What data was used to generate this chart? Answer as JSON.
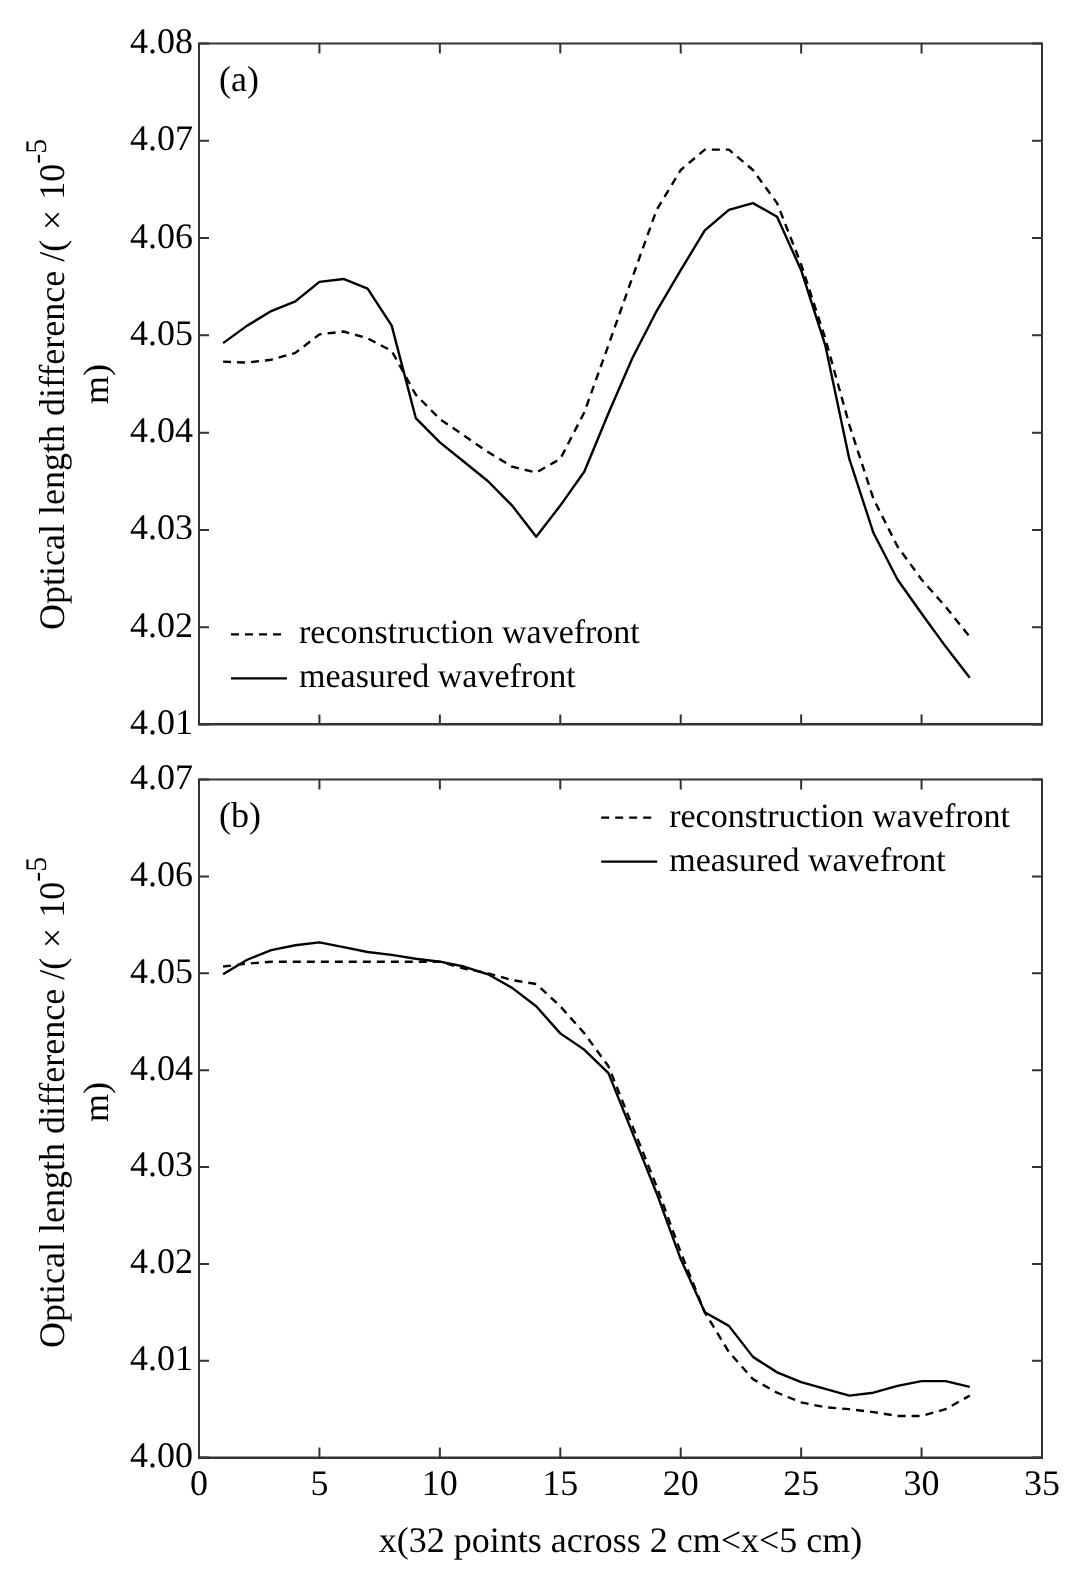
{
  "chart_data": [
    {
      "type": "line",
      "ylabel": "Optical length difference /(×10$^{-5}$ m)",
      "annotations": [
        "(a)"
      ],
      "legend": "bottom left",
      "tick_labels": "y",
      "x": [
        1,
        2,
        3,
        4,
        5,
        6,
        7,
        8,
        9,
        10,
        11,
        12,
        13,
        14,
        15,
        16,
        17,
        18,
        19,
        20,
        21,
        22,
        23,
        24,
        25,
        26,
        27,
        28,
        29,
        30,
        31,
        32
      ],
      "xlim": [
        0,
        35
      ],
      "xticks": [
        0,
        5,
        10,
        15,
        20,
        25,
        30,
        35
      ],
      "ylim": [
        4.01,
        4.08
      ],
      "yticks": [
        4.01,
        4.02,
        4.03,
        4.04,
        4.05,
        4.06,
        4.07,
        4.08
      ],
      "series": [
        {
          "name": "reconstruction wavefront",
          "color": "#000000",
          "line_style": "dashed",
          "values": [
            4.0473,
            4.0472,
            4.0475,
            4.0482,
            4.0501,
            4.0504,
            4.0497,
            4.0484,
            4.0439,
            4.0414,
            4.0397,
            4.038,
            4.0365,
            4.0359,
            4.0373,
            4.0421,
            4.049,
            4.056,
            4.0629,
            4.067,
            4.0691,
            4.0691,
            4.067,
            4.0636,
            4.0573,
            4.0497,
            4.0408,
            4.0332,
            4.0283,
            4.0249,
            4.0221,
            4.019
          ]
        },
        {
          "name": "measured wavefront",
          "color": "#000000",
          "line_style": "solid",
          "values": [
            4.0492,
            4.051,
            4.0525,
            4.0535,
            4.0555,
            4.0558,
            4.0548,
            4.051,
            4.0415,
            4.039,
            4.037,
            4.035,
            4.0325,
            4.0293,
            4.0325,
            4.036,
            4.042,
            4.0477,
            4.0525,
            4.0567,
            4.0608,
            4.0629,
            4.0636,
            4.0622,
            4.0567,
            4.049,
            4.0373,
            4.0297,
            4.0249,
            4.0214,
            4.018,
            4.0148
          ]
        }
      ]
    },
    {
      "type": "line",
      "ylabel": "Optical length difference /(×10$^{-5}$ m)",
      "xlabel": "x(32 points across 2 cm<x<5 cm)",
      "annotations": [
        "(b)"
      ],
      "legend": "top right",
      "x": [
        1,
        2,
        3,
        4,
        5,
        6,
        7,
        8,
        9,
        10,
        11,
        12,
        13,
        14,
        15,
        16,
        17,
        18,
        19,
        20,
        21,
        22,
        23,
        24,
        25,
        26,
        27,
        28,
        29,
        30,
        31,
        32
      ],
      "xlim": [
        0,
        35
      ],
      "xticks": [
        0,
        5,
        10,
        15,
        20,
        25,
        30,
        35
      ],
      "ylim": [
        4.0,
        4.07
      ],
      "yticks": [
        {
          "value": 4.0,
          "label": "4.00"
        },
        4.01,
        4.02,
        4.03,
        4.04,
        4.05,
        4.06,
        4.07
      ],
      "series": [
        {
          "name": "reconstruction wavefront",
          "color": "#000000",
          "line_style": "dashed",
          "values": [
            4.0507,
            4.051,
            4.0512,
            4.0512,
            4.0512,
            4.0512,
            4.0512,
            4.0512,
            4.0512,
            4.0512,
            4.0505,
            4.05,
            4.0493,
            4.0489,
            4.0466,
            4.0438,
            4.0404,
            4.0342,
            4.028,
            4.0212,
            4.015,
            4.0109,
            4.0081,
            4.0067,
            4.0057,
            4.0052,
            4.005,
            4.0047,
            4.0043,
            4.0043,
            4.005,
            4.0064
          ]
        },
        {
          "name": "measured wavefront",
          "color": "#000000",
          "line_style": "solid",
          "values": [
            4.0499,
            4.0514,
            4.0524,
            4.0529,
            4.0532,
            4.0527,
            4.0522,
            4.0519,
            4.0515,
            4.0512,
            4.0507,
            4.0499,
            4.0485,
            4.0466,
            4.0438,
            4.0421,
            4.0397,
            4.0335,
            4.0273,
            4.0205,
            4.015,
            4.0136,
            4.0104,
            4.0088,
            4.0078,
            4.0071,
            4.0064,
            4.0067,
            4.0074,
            4.0079,
            4.0079,
            4.0073
          ]
        }
      ]
    }
  ]
}
